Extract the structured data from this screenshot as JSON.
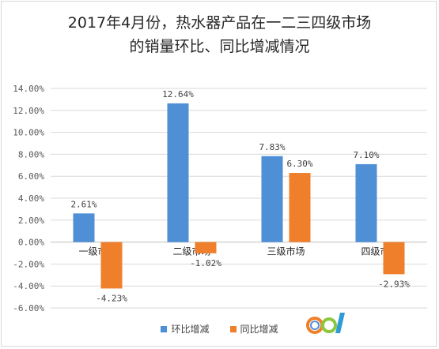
{
  "title_lines": [
    "2017年4月份，热水器产品在一二三四级市场",
    "的销量环比、同比增减情况"
  ],
  "colors": {
    "series1": "#4e8fd6",
    "series2": "#f07f2b",
    "grid": "#d9d9d9",
    "axis": "#bfbfbf"
  },
  "chart_data": {
    "type": "bar",
    "title": "2017年4月份，热水器产品在一二三四级市场的销量环比、同比增减情况",
    "categories": [
      "一级市场",
      "二级市场",
      "三级市场",
      "四级市场"
    ],
    "series": [
      {
        "name": "环比增减",
        "values": [
          2.61,
          12.64,
          7.83,
          7.1
        ],
        "labels": [
          "2.61%",
          "12.64%",
          "7.83%",
          "7.10%"
        ]
      },
      {
        "name": "同比增减",
        "values": [
          -4.23,
          -1.02,
          6.3,
          -2.93
        ],
        "labels": [
          "-4.23%",
          "-1.02%",
          "6.30%",
          "-2.93%"
        ]
      }
    ],
    "ylim": [
      -6,
      14
    ],
    "yticks": [
      14,
      12,
      10,
      8,
      6,
      4,
      2,
      0,
      -2,
      -4,
      -6
    ],
    "ytick_labels": [
      "14.00%",
      "12.00%",
      "10.00%",
      "8.00%",
      "6.00%",
      "4.00%",
      "2.00%",
      "0.00%",
      "-2.00%",
      "-4.00%",
      "-6.00%"
    ],
    "grid": true,
    "legend": "bottom-center"
  },
  "logo_icon": "ccq-logo-icon"
}
